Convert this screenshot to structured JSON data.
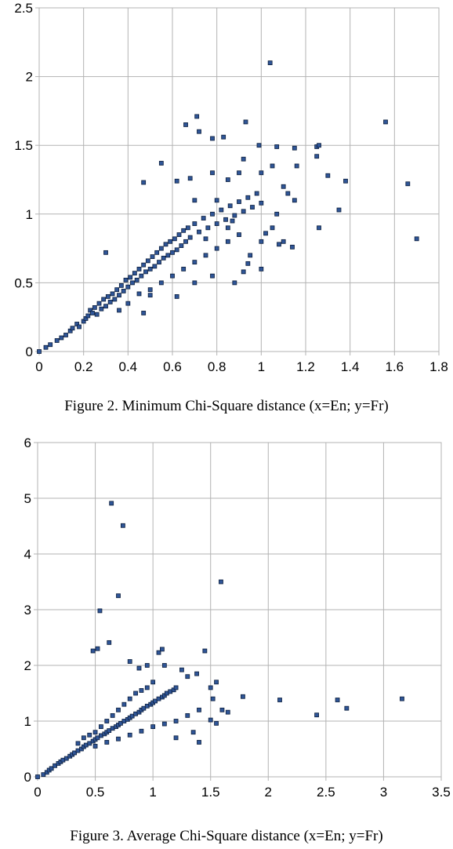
{
  "chart_data": [
    {
      "type": "scatter",
      "title": "Figure 2. Minimum Chi-Square distance (x=En; y=Fr)",
      "xlabel": "",
      "ylabel": "",
      "xlim": [
        0,
        1.8
      ],
      "ylim": [
        0,
        2.5
      ],
      "x_ticks": [
        "0",
        "0.2",
        "0.4",
        "0.6",
        "0.8",
        "1",
        "1.2",
        "1.4",
        "1.6",
        "1.8"
      ],
      "y_ticks": [
        "0",
        "0.5",
        "1",
        "1.5",
        "2",
        "2.5"
      ],
      "grid": true,
      "marker_color": "#2f5597",
      "series": [
        {
          "points": [
            [
              0.0,
              0.0
            ],
            [
              0.03,
              0.03
            ],
            [
              0.05,
              0.05
            ],
            [
              0.08,
              0.08
            ],
            [
              0.1,
              0.1
            ],
            [
              0.12,
              0.12
            ],
            [
              0.14,
              0.15
            ],
            [
              0.15,
              0.17
            ],
            [
              0.17,
              0.2
            ],
            [
              0.18,
              0.18
            ],
            [
              0.2,
              0.22
            ],
            [
              0.21,
              0.24
            ],
            [
              0.22,
              0.26
            ],
            [
              0.23,
              0.3
            ],
            [
              0.24,
              0.28
            ],
            [
              0.25,
              0.32
            ],
            [
              0.26,
              0.27
            ],
            [
              0.27,
              0.35
            ],
            [
              0.28,
              0.31
            ],
            [
              0.29,
              0.38
            ],
            [
              0.3,
              0.33
            ],
            [
              0.31,
              0.4
            ],
            [
              0.32,
              0.36
            ],
            [
              0.33,
              0.42
            ],
            [
              0.34,
              0.38
            ],
            [
              0.35,
              0.45
            ],
            [
              0.36,
              0.41
            ],
            [
              0.37,
              0.48
            ],
            [
              0.38,
              0.44
            ],
            [
              0.39,
              0.52
            ],
            [
              0.4,
              0.47
            ],
            [
              0.41,
              0.54
            ],
            [
              0.42,
              0.5
            ],
            [
              0.43,
              0.57
            ],
            [
              0.44,
              0.52
            ],
            [
              0.45,
              0.6
            ],
            [
              0.46,
              0.55
            ],
            [
              0.47,
              0.63
            ],
            [
              0.48,
              0.58
            ],
            [
              0.49,
              0.66
            ],
            [
              0.5,
              0.6
            ],
            [
              0.51,
              0.69
            ],
            [
              0.52,
              0.62
            ],
            [
              0.53,
              0.72
            ],
            [
              0.54,
              0.65
            ],
            [
              0.55,
              0.75
            ],
            [
              0.56,
              0.68
            ],
            [
              0.57,
              0.78
            ],
            [
              0.58,
              0.7
            ],
            [
              0.59,
              0.8
            ],
            [
              0.6,
              0.72
            ],
            [
              0.61,
              0.82
            ],
            [
              0.62,
              0.74
            ],
            [
              0.63,
              0.85
            ],
            [
              0.64,
              0.77
            ],
            [
              0.65,
              0.88
            ],
            [
              0.66,
              0.8
            ],
            [
              0.67,
              0.9
            ],
            [
              0.68,
              0.83
            ],
            [
              0.7,
              0.93
            ],
            [
              0.72,
              0.87
            ],
            [
              0.74,
              0.97
            ],
            [
              0.76,
              0.9
            ],
            [
              0.78,
              1.0
            ],
            [
              0.8,
              0.93
            ],
            [
              0.82,
              1.03
            ],
            [
              0.84,
              0.96
            ],
            [
              0.86,
              1.06
            ],
            [
              0.88,
              0.99
            ],
            [
              0.9,
              1.09
            ],
            [
              0.92,
              1.02
            ],
            [
              0.94,
              1.12
            ],
            [
              0.96,
              1.05
            ],
            [
              0.98,
              1.15
            ],
            [
              1.0,
              1.08
            ],
            [
              0.36,
              0.3
            ],
            [
              0.4,
              0.35
            ],
            [
              0.45,
              0.42
            ],
            [
              0.5,
              0.45
            ],
            [
              0.55,
              0.5
            ],
            [
              0.6,
              0.55
            ],
            [
              0.65,
              0.6
            ],
            [
              0.7,
              0.65
            ],
            [
              0.75,
              0.7
            ],
            [
              0.8,
              0.75
            ],
            [
              0.85,
              0.8
            ],
            [
              0.9,
              0.85
            ],
            [
              0.3,
              0.72
            ],
            [
              0.47,
              0.28
            ],
            [
              0.5,
              0.41
            ],
            [
              0.62,
              0.4
            ],
            [
              0.7,
              0.5
            ],
            [
              0.78,
              0.55
            ],
            [
              0.88,
              0.5
            ],
            [
              0.92,
              0.58
            ],
            [
              1.0,
              0.6
            ],
            [
              0.75,
              0.82
            ],
            [
              0.8,
              1.1
            ],
            [
              0.85,
              0.9
            ],
            [
              0.9,
              1.3
            ],
            [
              0.95,
              0.7
            ],
            [
              1.0,
              0.8
            ],
            [
              1.05,
              0.9
            ],
            [
              1.1,
              0.8
            ],
            [
              0.47,
              1.23
            ],
            [
              0.55,
              1.37
            ],
            [
              0.62,
              1.24
            ],
            [
              0.68,
              1.26
            ],
            [
              0.7,
              1.1
            ],
            [
              0.78,
              1.3
            ],
            [
              0.85,
              1.25
            ],
            [
              0.92,
              1.4
            ],
            [
              1.0,
              1.3
            ],
            [
              1.05,
              1.35
            ],
            [
              1.1,
              1.2
            ],
            [
              1.15,
              1.1
            ],
            [
              0.66,
              1.65
            ],
            [
              0.71,
              1.71
            ],
            [
              0.72,
              1.6
            ],
            [
              0.78,
              1.55
            ],
            [
              0.83,
              1.56
            ],
            [
              0.93,
              1.67
            ],
            [
              0.99,
              1.5
            ],
            [
              1.04,
              2.1
            ],
            [
              1.07,
              1.49
            ],
            [
              1.15,
              1.48
            ],
            [
              1.16,
              1.35
            ],
            [
              1.25,
              1.49
            ],
            [
              1.25,
              1.42
            ],
            [
              1.26,
              1.5
            ],
            [
              1.3,
              1.28
            ],
            [
              1.26,
              0.9
            ],
            [
              1.35,
              1.03
            ],
            [
              1.38,
              1.24
            ],
            [
              1.14,
              0.76
            ],
            [
              1.56,
              1.67
            ],
            [
              1.66,
              1.22
            ],
            [
              1.7,
              0.82
            ],
            [
              1.07,
              1.0
            ],
            [
              0.87,
              0.95
            ],
            [
              0.94,
              0.64
            ],
            [
              1.02,
              0.86
            ],
            [
              1.08,
              0.78
            ],
            [
              1.12,
              1.15
            ]
          ]
        }
      ]
    },
    {
      "type": "scatter",
      "title": "Figure 3. Average Chi-Square distance (x=En; y=Fr)",
      "xlabel": "",
      "ylabel": "",
      "xlim": [
        0,
        3.5
      ],
      "ylim": [
        0,
        6
      ],
      "x_ticks": [
        "0",
        "0.5",
        "1",
        "1.5",
        "2",
        "2.5",
        "3",
        "3.5"
      ],
      "y_ticks": [
        "0",
        "1",
        "2",
        "3",
        "4",
        "5",
        "6"
      ],
      "grid": true,
      "marker_color": "#2f5597",
      "series": [
        {
          "points": [
            [
              0.0,
              0.0
            ],
            [
              0.05,
              0.04
            ],
            [
              0.08,
              0.08
            ],
            [
              0.1,
              0.12
            ],
            [
              0.12,
              0.15
            ],
            [
              0.15,
              0.2
            ],
            [
              0.18,
              0.24
            ],
            [
              0.2,
              0.27
            ],
            [
              0.22,
              0.3
            ],
            [
              0.25,
              0.33
            ],
            [
              0.28,
              0.37
            ],
            [
              0.3,
              0.4
            ],
            [
              0.32,
              0.43
            ],
            [
              0.35,
              0.47
            ],
            [
              0.38,
              0.5
            ],
            [
              0.4,
              0.54
            ],
            [
              0.42,
              0.57
            ],
            [
              0.45,
              0.6
            ],
            [
              0.48,
              0.64
            ],
            [
              0.5,
              0.67
            ],
            [
              0.52,
              0.7
            ],
            [
              0.55,
              0.74
            ],
            [
              0.58,
              0.77
            ],
            [
              0.6,
              0.8
            ],
            [
              0.62,
              0.83
            ],
            [
              0.65,
              0.87
            ],
            [
              0.68,
              0.9
            ],
            [
              0.7,
              0.93
            ],
            [
              0.72,
              0.96
            ],
            [
              0.75,
              1.0
            ],
            [
              0.78,
              1.03
            ],
            [
              0.8,
              1.06
            ],
            [
              0.82,
              1.09
            ],
            [
              0.85,
              1.13
            ],
            [
              0.88,
              1.16
            ],
            [
              0.9,
              1.2
            ],
            [
              0.92,
              1.23
            ],
            [
              0.95,
              1.27
            ],
            [
              0.98,
              1.3
            ],
            [
              1.0,
              1.33
            ],
            [
              1.02,
              1.36
            ],
            [
              1.05,
              1.4
            ],
            [
              1.08,
              1.43
            ],
            [
              1.1,
              1.46
            ],
            [
              1.12,
              1.5
            ],
            [
              1.15,
              1.53
            ],
            [
              1.18,
              1.56
            ],
            [
              1.2,
              1.6
            ],
            [
              0.35,
              0.6
            ],
            [
              0.4,
              0.7
            ],
            [
              0.45,
              0.75
            ],
            [
              0.5,
              0.8
            ],
            [
              0.55,
              0.9
            ],
            [
              0.6,
              1.0
            ],
            [
              0.65,
              1.1
            ],
            [
              0.7,
              1.2
            ],
            [
              0.75,
              1.3
            ],
            [
              0.8,
              1.4
            ],
            [
              0.85,
              1.5
            ],
            [
              0.9,
              1.55
            ],
            [
              0.95,
              1.6
            ],
            [
              1.0,
              1.7
            ],
            [
              0.5,
              0.55
            ],
            [
              0.6,
              0.62
            ],
            [
              0.7,
              0.68
            ],
            [
              0.8,
              0.75
            ],
            [
              0.9,
              0.82
            ],
            [
              1.0,
              0.9
            ],
            [
              1.1,
              0.95
            ],
            [
              1.2,
              1.0
            ],
            [
              1.3,
              1.1
            ],
            [
              1.4,
              1.2
            ],
            [
              0.48,
              2.26
            ],
            [
              0.52,
              2.3
            ],
            [
              0.62,
              2.41
            ],
            [
              0.8,
              2.07
            ],
            [
              0.88,
              1.95
            ],
            [
              0.95,
              2.0
            ],
            [
              1.05,
              2.23
            ],
            [
              1.08,
              2.29
            ],
            [
              1.1,
              2.0
            ],
            [
              1.25,
              1.92
            ],
            [
              1.3,
              1.8
            ],
            [
              1.38,
              1.85
            ],
            [
              1.45,
              2.26
            ],
            [
              1.5,
              1.6
            ],
            [
              1.52,
              1.4
            ],
            [
              1.55,
              1.7
            ],
            [
              1.6,
              1.2
            ],
            [
              1.65,
              1.16
            ],
            [
              1.78,
              1.44
            ],
            [
              1.5,
              1.02
            ],
            [
              1.55,
              0.96
            ],
            [
              1.35,
              0.8
            ],
            [
              1.4,
              0.62
            ],
            [
              1.2,
              0.7
            ],
            [
              0.64,
              4.91
            ],
            [
              0.74,
              4.51
            ],
            [
              0.7,
              3.25
            ],
            [
              0.54,
              2.98
            ],
            [
              1.59,
              3.5
            ],
            [
              2.1,
              1.38
            ],
            [
              2.42,
              1.11
            ],
            [
              2.6,
              1.38
            ],
            [
              2.68,
              1.23
            ],
            [
              3.16,
              1.4
            ]
          ]
        }
      ]
    }
  ]
}
